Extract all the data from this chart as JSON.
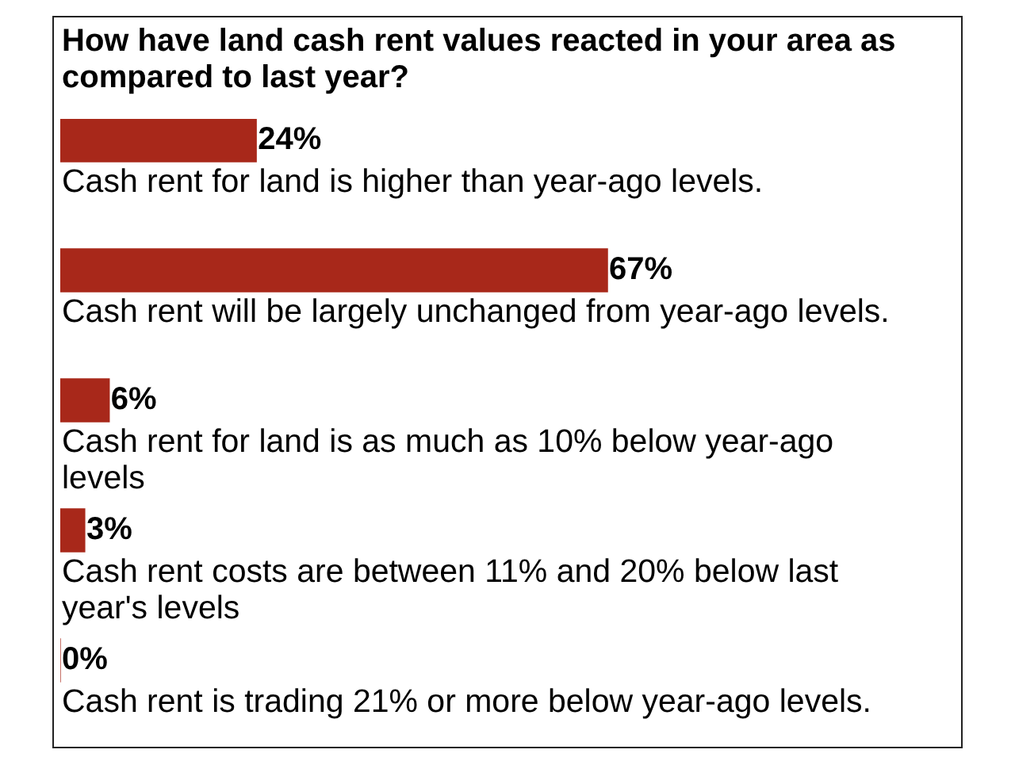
{
  "chart_data": {
    "type": "bar",
    "orientation": "horizontal",
    "title": "How have land cash rent values reacted in your area as compared to last year?",
    "categories": [
      "Cash rent for land is higher than year-ago levels.",
      "Cash rent will be largely unchanged from year-ago levels.",
      "Cash rent for land is as much as 10% below year-ago levels",
      "Cash rent costs are between 11% and 20% below last year's levels",
      "Cash rent is trading 21% or more below year-ago levels."
    ],
    "values": [
      24,
      67,
      6,
      3,
      0
    ],
    "value_labels": [
      "24%",
      "67%",
      "6%",
      "3%",
      "0%"
    ],
    "color": "#a8281a",
    "legend": false
  }
}
